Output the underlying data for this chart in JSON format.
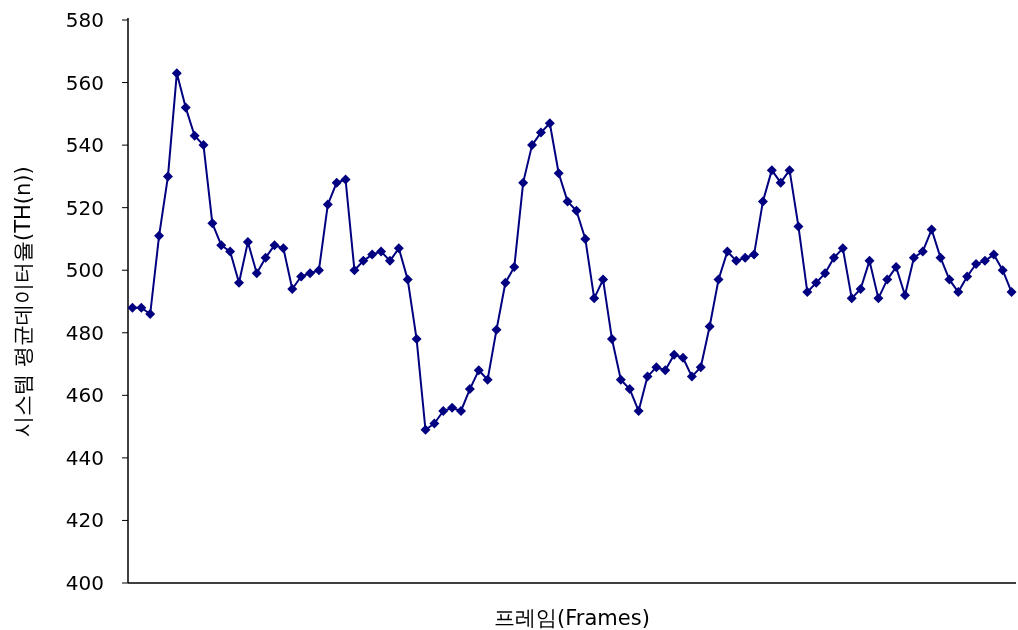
{
  "chart_data": {
    "type": "line",
    "xlabel": "프레임(Frames)",
    "ylabel": "시스템 평균데이터율(TH(n))",
    "categories": [
      null,
      null,
      null,
      null,
      null,
      null,
      null,
      null,
      null,
      null,
      null,
      null,
      null,
      null,
      null,
      null,
      null,
      null,
      null,
      null,
      null,
      null,
      null,
      null,
      null,
      null,
      null,
      null,
      null,
      null,
      null,
      null,
      null,
      null,
      null,
      null,
      null,
      null,
      null,
      null,
      null,
      null,
      null,
      null,
      null,
      null,
      null,
      null,
      null,
      null,
      null,
      null,
      null,
      null,
      null,
      null,
      null,
      null,
      null,
      null,
      null,
      null,
      null,
      null,
      null,
      null,
      null,
      null,
      null,
      null,
      null,
      null,
      null,
      null,
      null,
      null,
      null,
      null,
      null,
      null,
      null,
      null,
      null,
      null,
      null,
      null,
      null,
      null,
      null,
      null,
      null,
      null,
      null,
      null,
      null,
      null,
      null,
      null,
      null,
      null
    ],
    "series": [
      {
        "color": "#000080",
        "values": [
          488,
          488,
          486,
          511,
          530,
          563,
          552,
          543,
          540,
          515,
          508,
          506,
          496,
          509,
          499,
          504,
          508,
          507,
          494,
          498,
          499,
          500,
          521,
          528,
          529,
          500,
          503,
          505,
          506,
          503,
          507,
          497,
          478,
          449,
          451,
          455,
          456,
          455,
          462,
          468,
          465,
          481,
          496,
          501,
          528,
          540,
          544,
          547,
          531,
          522,
          519,
          510,
          491,
          497,
          478,
          465,
          462,
          455,
          466,
          469,
          468,
          473,
          472,
          466,
          469,
          482,
          497,
          506,
          503,
          504,
          505,
          522,
          532,
          528,
          532,
          514,
          493,
          496,
          499,
          504,
          507,
          491,
          494,
          503,
          491,
          497,
          501,
          492,
          504,
          506,
          513,
          504,
          497,
          493,
          498,
          502,
          503,
          505,
          500,
          493
        ]
      }
    ],
    "ylim": [
      400,
      580
    ],
    "yticks": [
      400,
      420,
      440,
      460,
      480,
      500,
      520,
      540,
      560,
      580
    ],
    "marker": "diamond",
    "grid": false
  }
}
